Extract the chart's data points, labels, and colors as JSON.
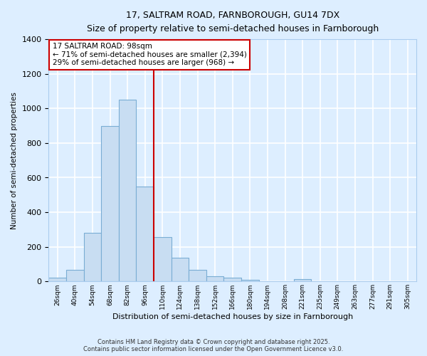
{
  "title1": "17, SALTRAM ROAD, FARNBOROUGH, GU14 7DX",
  "title2": "Size of property relative to semi-detached houses in Farnborough",
  "xlabel": "Distribution of semi-detached houses by size in Farnborough",
  "ylabel": "Number of semi-detached properties",
  "categories": [
    "26sqm",
    "40sqm",
    "54sqm",
    "68sqm",
    "82sqm",
    "96sqm",
    "110sqm",
    "124sqm",
    "138sqm",
    "152sqm",
    "166sqm",
    "180sqm",
    "194sqm",
    "208sqm",
    "221sqm",
    "235sqm",
    "249sqm",
    "263sqm",
    "277sqm",
    "291sqm",
    "305sqm"
  ],
  "values": [
    20,
    65,
    280,
    900,
    1050,
    550,
    255,
    135,
    65,
    28,
    20,
    10,
    0,
    0,
    15,
    0,
    0,
    0,
    0,
    0,
    0
  ],
  "bar_color": "#c8ddf2",
  "bar_edge_color": "#7aadd4",
  "vline_x_index": 5,
  "vline_color": "#cc0000",
  "annotation_title": "17 SALTRAM ROAD: 98sqm",
  "annotation_line2": "← 71% of semi-detached houses are smaller (2,394)",
  "annotation_line3": "29% of semi-detached houses are larger (968) →",
  "annotation_box_color": "#ffffff",
  "annotation_box_edge": "#cc0000",
  "footer1": "Contains HM Land Registry data © Crown copyright and database right 2025.",
  "footer2": "Contains public sector information licensed under the Open Government Licence v3.0.",
  "ylim": [
    0,
    1400
  ],
  "background_color": "#ddeeff",
  "grid_color": "#ffffff"
}
